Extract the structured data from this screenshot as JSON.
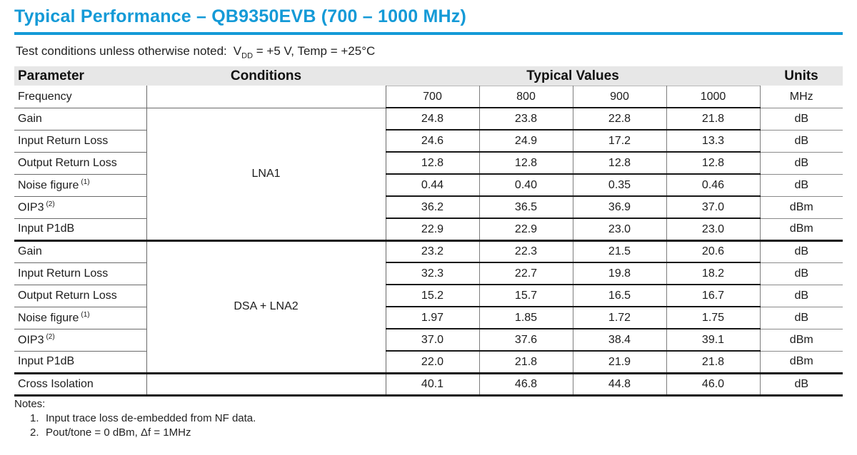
{
  "page": {
    "title": "Typical Performance – QB9350EVB (700 – 1000 MHz)",
    "test_conditions": {
      "prefix": "Test conditions unless otherwise noted:",
      "vdd_symbol": "V",
      "vdd_sub": "DD",
      "rest": "= +5 V, Temp = +25°C"
    }
  },
  "table": {
    "headers": {
      "parameter": "Parameter",
      "conditions": "Conditions",
      "typical_values": "Typical Values",
      "units": "Units"
    },
    "frequency_row": {
      "parameter": "Frequency",
      "values": [
        "700",
        "800",
        "900",
        "1000"
      ],
      "units": "MHz"
    },
    "groups": [
      {
        "condition": "LNA1",
        "rows": [
          {
            "parameter": "Gain",
            "values": [
              "24.8",
              "23.8",
              "22.8",
              "21.8"
            ],
            "units": "dB"
          },
          {
            "parameter": "Input Return Loss",
            "values": [
              "24.6",
              "24.9",
              "17.2",
              "13.3"
            ],
            "units": "dB"
          },
          {
            "parameter": "Output Return Loss",
            "values": [
              "12.8",
              "12.8",
              "12.8",
              "12.8"
            ],
            "units": "dB"
          },
          {
            "parameter": "Noise figure",
            "sup": "(1)",
            "values": [
              "0.44",
              "0.40",
              "0.35",
              "0.46"
            ],
            "units": "dB"
          },
          {
            "parameter": "OIP3",
            "sup": "(2)",
            "values": [
              "36.2",
              "36.5",
              "36.9",
              "37.0"
            ],
            "units": "dBm"
          },
          {
            "parameter": "Input P1dB",
            "values": [
              "22.9",
              "22.9",
              "23.0",
              "23.0"
            ],
            "units": "dBm"
          }
        ]
      },
      {
        "condition": "DSA + LNA2",
        "rows": [
          {
            "parameter": "Gain",
            "values": [
              "23.2",
              "22.3",
              "21.5",
              "20.6"
            ],
            "units": "dB"
          },
          {
            "parameter": "Input Return Loss",
            "values": [
              "32.3",
              "22.7",
              "19.8",
              "18.2"
            ],
            "units": "dB"
          },
          {
            "parameter": "Output Return Loss",
            "values": [
              "15.2",
              "15.7",
              "16.5",
              "16.7"
            ],
            "units": "dB"
          },
          {
            "parameter": "Noise figure",
            "sup": "(1)",
            "values": [
              "1.97",
              "1.85",
              "1.72",
              "1.75"
            ],
            "units": "dB"
          },
          {
            "parameter": "OIP3",
            "sup": "(2)",
            "values": [
              "37.0",
              "37.6",
              "38.4",
              "39.1"
            ],
            "units": "dBm"
          },
          {
            "parameter": "Input P1dB",
            "values": [
              "22.0",
              "21.8",
              "21.9",
              "21.8"
            ],
            "units": "dBm"
          }
        ]
      }
    ],
    "cross_isolation_row": {
      "parameter": "Cross Isolation",
      "values": [
        "40.1",
        "46.8",
        "44.8",
        "46.0"
      ],
      "units": "dB"
    }
  },
  "notes": {
    "label": "Notes:",
    "items": [
      {
        "num": "1.",
        "text": "Input trace loss de-embedded from NF data."
      },
      {
        "num": "2.",
        "text": "Pout/tone = 0 dBm, Δf = 1MHz"
      }
    ]
  },
  "colors": {
    "accent": "#149AD7",
    "header_bg": "#E7E7E7",
    "border_gray": "#6A6A6A",
    "border_dark": "#141414"
  }
}
